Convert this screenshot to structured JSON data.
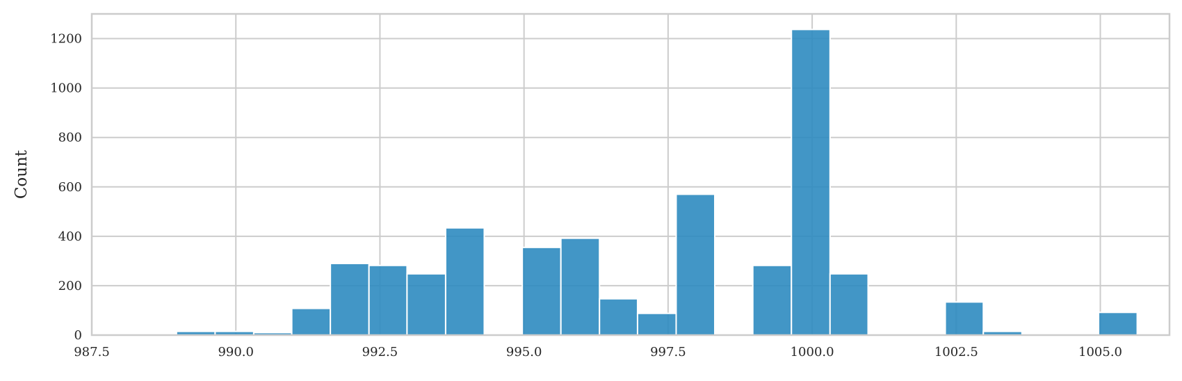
{
  "chart_data": {
    "type": "bar",
    "title": "",
    "xlabel": "",
    "ylabel": "Count",
    "xlim": [
      987.5,
      1006.2
    ],
    "ylim": [
      0,
      1300
    ],
    "xticks": [
      987.5,
      990.0,
      992.5,
      995.0,
      997.5,
      1000.0,
      1002.5,
      1005.0
    ],
    "xtick_labels": [
      "987.5",
      "990.0",
      "992.5",
      "995.0",
      "997.5",
      "1000.0",
      "1002.5",
      "1005.0"
    ],
    "yticks": [
      0,
      200,
      400,
      600,
      800,
      1000,
      1200
    ],
    "ytick_labels": [
      "0",
      "200",
      "400",
      "600",
      "800",
      "1000",
      "1200"
    ],
    "grid": true,
    "bar_color": "#2e8bc0",
    "bins": [
      {
        "x0": 987.64,
        "x1": 988.31,
        "count": 0
      },
      {
        "x0": 988.31,
        "x1": 988.97,
        "count": 0
      },
      {
        "x0": 988.97,
        "x1": 989.64,
        "count": 15
      },
      {
        "x0": 989.64,
        "x1": 990.31,
        "count": 15
      },
      {
        "x0": 990.31,
        "x1": 990.97,
        "count": 10
      },
      {
        "x0": 990.97,
        "x1": 991.64,
        "count": 108
      },
      {
        "x0": 991.64,
        "x1": 992.31,
        "count": 290
      },
      {
        "x0": 992.31,
        "x1": 992.97,
        "count": 282
      },
      {
        "x0": 992.97,
        "x1": 993.64,
        "count": 248
      },
      {
        "x0": 993.64,
        "x1": 994.31,
        "count": 434
      },
      {
        "x0": 994.31,
        "x1": 994.97,
        "count": 0
      },
      {
        "x0": 994.97,
        "x1": 995.64,
        "count": 355
      },
      {
        "x0": 995.64,
        "x1": 996.31,
        "count": 392
      },
      {
        "x0": 996.31,
        "x1": 996.97,
        "count": 147
      },
      {
        "x0": 996.97,
        "x1": 997.64,
        "count": 88
      },
      {
        "x0": 997.64,
        "x1": 998.31,
        "count": 570
      },
      {
        "x0": 998.31,
        "x1": 998.97,
        "count": 0
      },
      {
        "x0": 998.97,
        "x1": 999.64,
        "count": 282
      },
      {
        "x0": 999.64,
        "x1": 1000.31,
        "count": 1237
      },
      {
        "x0": 1000.31,
        "x1": 1000.97,
        "count": 248
      },
      {
        "x0": 1000.97,
        "x1": 1001.64,
        "count": 0
      },
      {
        "x0": 1001.64,
        "x1": 1002.31,
        "count": 0
      },
      {
        "x0": 1002.31,
        "x1": 1002.97,
        "count": 134
      },
      {
        "x0": 1002.97,
        "x1": 1003.64,
        "count": 15
      },
      {
        "x0": 1003.64,
        "x1": 1004.31,
        "count": 0
      },
      {
        "x0": 1004.31,
        "x1": 1004.97,
        "count": 0
      },
      {
        "x0": 1004.97,
        "x1": 1005.64,
        "count": 92
      }
    ]
  }
}
